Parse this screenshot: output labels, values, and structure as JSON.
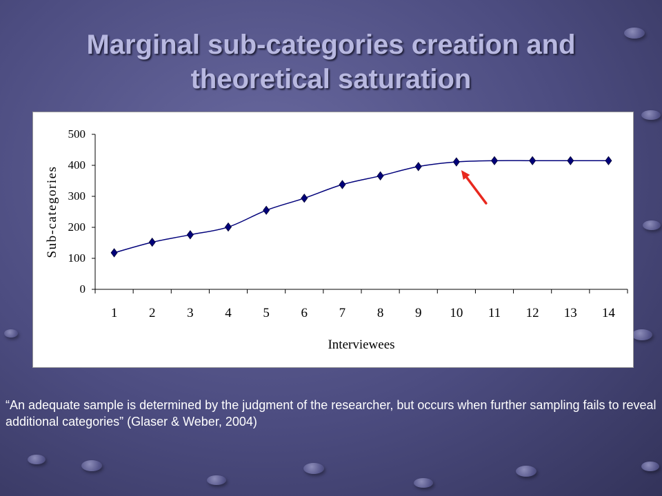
{
  "title_line1": "Marginal sub-categories creation and",
  "title_line2": "theoretical saturation",
  "quote": "“An adequate sample is determined by the judgment of the researcher, but occurs when further sampling fails to reveal additional categories” (Glaser & Weber, 2004)",
  "chart_data": {
    "type": "line",
    "title": "",
    "xlabel": "Interviewees",
    "ylabel": "Sub-categories",
    "categories": [
      "1",
      "2",
      "3",
      "4",
      "5",
      "6",
      "7",
      "8",
      "9",
      "10",
      "11",
      "12",
      "13",
      "14"
    ],
    "values": [
      118,
      152,
      176,
      201,
      255,
      294,
      338,
      366,
      396,
      411,
      415,
      415,
      415,
      415
    ],
    "ylim": [
      0,
      500
    ],
    "yticks": [
      "0",
      "100",
      "200",
      "300",
      "400",
      "500"
    ],
    "grid": false,
    "legend": "none",
    "line_color": "#00007a",
    "marker_color": "#00007a",
    "annotation": {
      "type": "arrow",
      "points_to_category": "10",
      "color": "#e8281e"
    }
  }
}
